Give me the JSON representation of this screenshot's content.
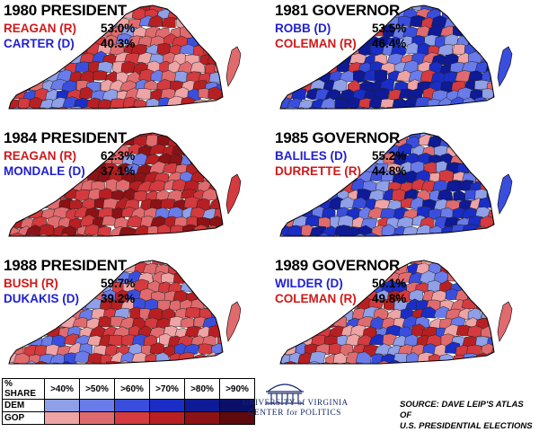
{
  "colors": {
    "dem_scale": [
      "#8f9fe8",
      "#6a7bea",
      "#3a4ede",
      "#1a2dc6",
      "#0e1a96",
      "#0a106a"
    ],
    "gop_scale": [
      "#eea3a5",
      "#e06b6e",
      "#d43a3e",
      "#b81f22",
      "#8c1215",
      "#5e0a0c"
    ],
    "dem_text": "#2020d0",
    "gop_text": "#d01818"
  },
  "panels": [
    {
      "title": "1980 PRESIDENT",
      "lean": "gop",
      "rows": [
        {
          "name": "REAGAN (R)",
          "pct": "53.0%",
          "party": "gop"
        },
        {
          "name": "CARTER (D)",
          "pct": "40.3%",
          "party": "dem"
        }
      ]
    },
    {
      "title": "1981 GOVERNOR",
      "lean": "dem",
      "rows": [
        {
          "name": "ROBB (D)",
          "pct": "53.5%",
          "party": "dem"
        },
        {
          "name": "COLEMAN (R)",
          "pct": "46.4%",
          "party": "gop"
        }
      ]
    },
    {
      "title": "1984 PRESIDENT",
      "lean": "gop_strong",
      "rows": [
        {
          "name": "REAGAN (R)",
          "pct": "62.3%",
          "party": "gop"
        },
        {
          "name": "MONDALE (D)",
          "pct": "37.1%",
          "party": "dem"
        }
      ]
    },
    {
      "title": "1985 GOVERNOR",
      "lean": "dem",
      "rows": [
        {
          "name": "BALILES (D)",
          "pct": "55.2%",
          "party": "dem"
        },
        {
          "name": "DURRETTE (R)",
          "pct": "44.8%",
          "party": "gop"
        }
      ]
    },
    {
      "title": "1988 PRESIDENT",
      "lean": "gop",
      "rows": [
        {
          "name": "BUSH (R)",
          "pct": "59.7%",
          "party": "gop"
        },
        {
          "name": "DUKAKIS (D)",
          "pct": "39.2%",
          "party": "dem"
        }
      ]
    },
    {
      "title": "1989 GOVERNOR",
      "lean": "mixed",
      "rows": [
        {
          "name": "WILDER (D)",
          "pct": "50.1%",
          "party": "dem"
        },
        {
          "name": "COLEMAN (R)",
          "pct": "49.8%",
          "party": "gop"
        }
      ]
    }
  ],
  "legend": {
    "header": "% SHARE",
    "bins": [
      ">40%",
      ">50%",
      ">60%",
      ">70%",
      ">80%",
      ">90%"
    ],
    "rows": [
      "DEM",
      "GOP"
    ]
  },
  "logo": {
    "line1": "UNIVERSITY of VIRGINIA",
    "line2": "CENTER for POLITICS"
  },
  "source": {
    "line1": "SOURCE: DAVE LEIP'S ATLAS OF",
    "line2": "U.S. PRESIDENTIAL ELECTIONS"
  }
}
